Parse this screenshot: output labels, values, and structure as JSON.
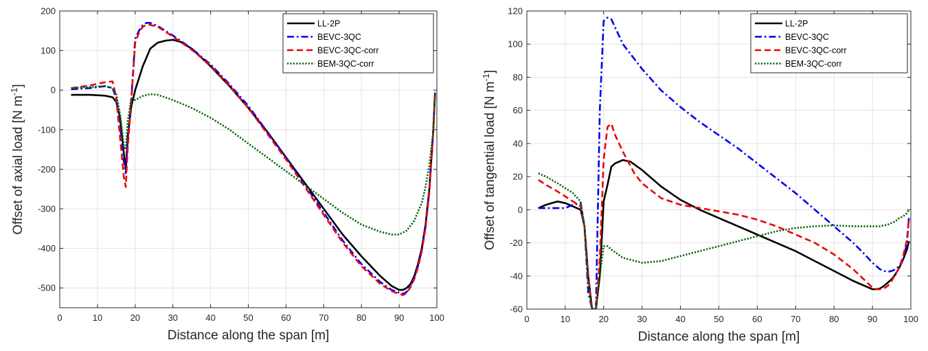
{
  "chart_data": [
    {
      "type": "line",
      "xlabel": "Distance along the span [m]",
      "ylabel": "Offset of axial load [N m",
      "ylabel_sup": "-1",
      "ylabel_end": "]",
      "xlim": [
        0,
        100
      ],
      "ylim": [
        -550,
        200
      ],
      "xticks": [
        0,
        10,
        20,
        30,
        40,
        50,
        60,
        70,
        80,
        90,
        100
      ],
      "yticks": [
        -500,
        -400,
        -300,
        -200,
        -100,
        0,
        100,
        200
      ],
      "grid": true,
      "legend_position": "top-right",
      "series": [
        {
          "name": "LL-2P",
          "color": "#000000",
          "style": "solid",
          "x": [
            3,
            8,
            12,
            14,
            15,
            16,
            17,
            17.5,
            18,
            19,
            20,
            22,
            24,
            26,
            28,
            30,
            32,
            35,
            40,
            45,
            50,
            55,
            60,
            65,
            70,
            75,
            80,
            85,
            88,
            90,
            91,
            92,
            93,
            94,
            95,
            96,
            97,
            98,
            99,
            99.5
          ],
          "y": [
            -12,
            -12,
            -14,
            -18,
            -30,
            -70,
            -160,
            -200,
            -120,
            -40,
            0,
            60,
            105,
            120,
            125,
            127,
            122,
            105,
            60,
            10,
            -45,
            -105,
            -170,
            -235,
            -300,
            -365,
            -420,
            -470,
            -495,
            -505,
            -505,
            -500,
            -490,
            -470,
            -440,
            -400,
            -340,
            -250,
            -110,
            -10
          ]
        },
        {
          "name": "BEVC-3QC",
          "color": "#0000ee",
          "style": "dashdot",
          "x": [
            3,
            8,
            12,
            14,
            15,
            16,
            17,
            17.5,
            18,
            19,
            20,
            21,
            22,
            23,
            24,
            26,
            28,
            30,
            32,
            35,
            40,
            45,
            50,
            55,
            60,
            65,
            70,
            75,
            80,
            85,
            88,
            90,
            91,
            92,
            93,
            94,
            95,
            96,
            97,
            98,
            99,
            99.5
          ],
          "y": [
            2,
            5,
            10,
            5,
            -20,
            -90,
            -180,
            -210,
            -130,
            -20,
            130,
            150,
            165,
            170,
            170,
            162,
            150,
            138,
            125,
            105,
            65,
            15,
            -40,
            -105,
            -170,
            -240,
            -310,
            -380,
            -440,
            -485,
            -505,
            -512,
            -515,
            -510,
            -495,
            -475,
            -445,
            -405,
            -345,
            -255,
            -110,
            -5
          ]
        },
        {
          "name": "BEVC-3QC-corr",
          "color": "#ee0000",
          "style": "dashed",
          "x": [
            3,
            8,
            12,
            14,
            15,
            16,
            17,
            17.5,
            18,
            19,
            20,
            21,
            22,
            23,
            24,
            26,
            28,
            30,
            32,
            35,
            40,
            45,
            50,
            55,
            60,
            65,
            70,
            75,
            80,
            85,
            88,
            90,
            91,
            92,
            93,
            94,
            95,
            96,
            97,
            98,
            99,
            99.5
          ],
          "y": [
            5,
            12,
            20,
            22,
            -20,
            -120,
            -220,
            -245,
            -150,
            -20,
            120,
            145,
            160,
            165,
            165,
            160,
            148,
            135,
            122,
            102,
            62,
            12,
            -45,
            -110,
            -175,
            -245,
            -315,
            -385,
            -445,
            -490,
            -508,
            -515,
            -518,
            -513,
            -498,
            -478,
            -448,
            -408,
            -348,
            -258,
            -110,
            -5
          ]
        },
        {
          "name": "BEM-3QC-corr",
          "color": "#006400",
          "style": "dotted",
          "x": [
            3,
            8,
            12,
            14,
            15,
            16,
            17,
            17.5,
            18,
            19,
            20,
            22,
            24,
            26,
            30,
            35,
            40,
            45,
            50,
            55,
            60,
            65,
            70,
            75,
            80,
            85,
            88,
            90,
            92,
            94,
            96,
            97,
            98,
            99,
            99.5
          ],
          "y": [
            5,
            8,
            10,
            5,
            -10,
            -60,
            -140,
            -150,
            -80,
            -20,
            -25,
            -15,
            -10,
            -12,
            -25,
            -45,
            -70,
            -100,
            -135,
            -170,
            -205,
            -240,
            -275,
            -310,
            -340,
            -358,
            -365,
            -365,
            -355,
            -330,
            -285,
            -245,
            -190,
            -110,
            -10
          ]
        }
      ]
    },
    {
      "type": "line",
      "xlabel": "Distance along the span [m]",
      "ylabel": "Offset of tangential load [N m",
      "ylabel_sup": "-1",
      "ylabel_end": "]",
      "xlim": [
        0,
        100
      ],
      "ylim": [
        -60,
        120
      ],
      "xticks": [
        0,
        10,
        20,
        30,
        40,
        50,
        60,
        70,
        80,
        90,
        100
      ],
      "yticks": [
        -60,
        -40,
        -20,
        0,
        20,
        40,
        60,
        80,
        100,
        120
      ],
      "grid": true,
      "legend_position": "top-right",
      "series": [
        {
          "name": "LL-2P",
          "color": "#000000",
          "style": "solid",
          "x": [
            3,
            5,
            8,
            10,
            12,
            14,
            15,
            16,
            17,
            18,
            19,
            20,
            21,
            22,
            23,
            25,
            27,
            30,
            35,
            40,
            45,
            50,
            55,
            60,
            65,
            70,
            75,
            80,
            85,
            90,
            91,
            92,
            93,
            94,
            95,
            96,
            97,
            98,
            99,
            99.5
          ],
          "y": [
            1,
            3,
            5,
            4,
            2,
            0,
            -10,
            -40,
            -60,
            -60,
            -40,
            5,
            15,
            26,
            28,
            30,
            29,
            24,
            14,
            6,
            0,
            -5,
            -10,
            -15,
            -20,
            -25,
            -31,
            -37,
            -43,
            -48,
            -48,
            -47.5,
            -46,
            -44,
            -42,
            -39,
            -35,
            -30,
            -24,
            -19
          ]
        },
        {
          "name": "BEVC-3QC",
          "color": "#0000ee",
          "style": "dashdot",
          "x": [
            3,
            5,
            8,
            10,
            12,
            14,
            15,
            16,
            17,
            18,
            19,
            20,
            21,
            22,
            25,
            30,
            35,
            40,
            45,
            50,
            55,
            60,
            65,
            70,
            75,
            80,
            85,
            88,
            90,
            92,
            93,
            94,
            95,
            96,
            97,
            98,
            99,
            99.5
          ],
          "y": [
            1,
            1,
            1,
            1,
            3,
            4,
            -10,
            -50,
            -60,
            -60,
            60,
            114,
            116,
            115,
            100,
            85,
            72,
            62,
            53,
            45,
            37,
            28,
            19,
            10,
            0,
            -10,
            -20,
            -27,
            -32,
            -36,
            -37,
            -37.5,
            -37,
            -36,
            -34,
            -30,
            -20,
            -5
          ]
        },
        {
          "name": "BEVC-3QC-corr",
          "color": "#ee0000",
          "style": "dashed",
          "x": [
            3,
            5,
            8,
            10,
            12,
            14,
            15,
            16,
            17,
            18,
            19,
            20,
            21,
            22,
            23,
            25,
            28,
            30,
            35,
            40,
            45,
            50,
            55,
            60,
            65,
            70,
            75,
            80,
            85,
            90,
            91,
            92,
            93,
            94,
            95,
            96,
            97,
            98,
            99,
            99.5
          ],
          "y": [
            18,
            15,
            11,
            8,
            5,
            2,
            -10,
            -40,
            -60,
            -60,
            -30,
            30,
            50,
            52,
            45,
            35,
            22,
            16,
            7,
            3,
            1,
            -1,
            -3,
            -6,
            -10,
            -15,
            -20,
            -27,
            -36,
            -47,
            -48,
            -48,
            -47.5,
            -46,
            -43,
            -39,
            -35,
            -28,
            -18,
            -5
          ]
        },
        {
          "name": "BEM-3QC-corr",
          "color": "#006400",
          "style": "dotted",
          "x": [
            3,
            5,
            8,
            10,
            12,
            14,
            15,
            16,
            17,
            18,
            19,
            20,
            21,
            22,
            25,
            30,
            35,
            40,
            45,
            50,
            55,
            60,
            65,
            70,
            75,
            80,
            85,
            90,
            92,
            94,
            95,
            96,
            97,
            98,
            99,
            99.5
          ],
          "y": [
            22,
            20,
            16,
            13,
            10,
            5,
            -10,
            -45,
            -60,
            -60,
            -40,
            -22,
            -22,
            -24,
            -29,
            -32,
            -31,
            -28,
            -25,
            -22,
            -19,
            -16,
            -13,
            -11,
            -10,
            -9.5,
            -10,
            -10,
            -10,
            -9,
            -8,
            -7,
            -5,
            -4,
            -2,
            0
          ]
        }
      ]
    }
  ]
}
